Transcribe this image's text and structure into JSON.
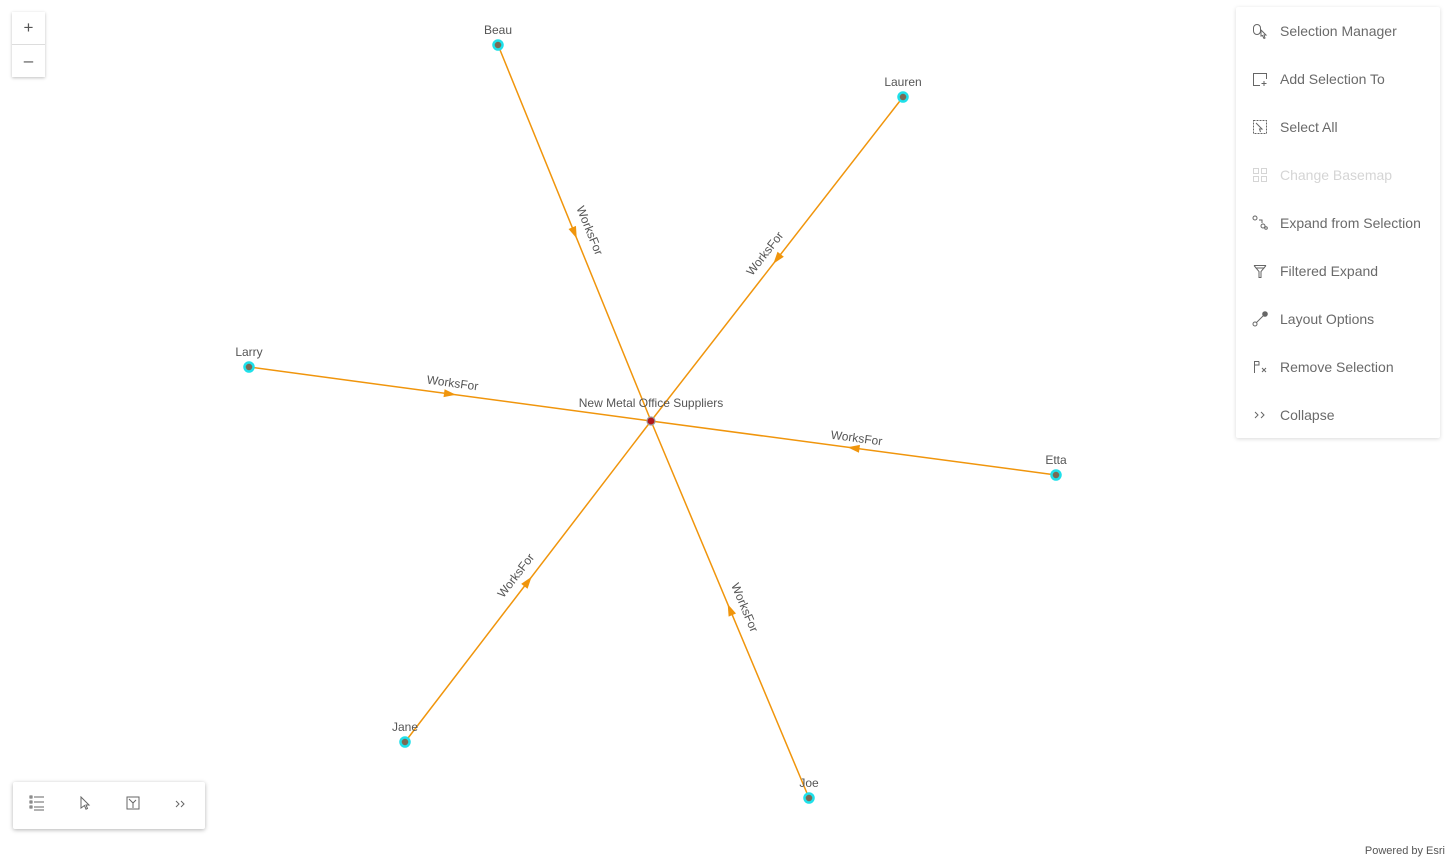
{
  "graph": {
    "center": {
      "label": "New Metal Office Suppliers",
      "color": "#b3161b"
    },
    "nodes": [
      {
        "label": "Beau"
      },
      {
        "label": "Lauren"
      },
      {
        "label": "Larry"
      },
      {
        "label": "Etta"
      },
      {
        "label": "Jane"
      },
      {
        "label": "Joe"
      }
    ],
    "edge_label": "WorksFor",
    "edge_color": "#f0950c",
    "node_ring_color": "#1fe0ea",
    "node_fill_color": "#7a6a55"
  },
  "zoom": {
    "in": "+",
    "out": "–"
  },
  "menu": {
    "items": [
      {
        "label": "Selection Manager",
        "icon": "selection-manager-icon"
      },
      {
        "label": "Add Selection To",
        "icon": "add-selection-icon"
      },
      {
        "label": "Select All",
        "icon": "select-all-icon"
      },
      {
        "label": "Change Basemap",
        "icon": "basemap-icon",
        "disabled": true
      },
      {
        "label": "Expand from Selection",
        "icon": "expand-icon"
      },
      {
        "label": "Filtered Expand",
        "icon": "filter-icon"
      },
      {
        "label": "Layout Options",
        "icon": "layout-icon"
      },
      {
        "label": "Remove Selection",
        "icon": "remove-selection-icon"
      },
      {
        "label": "Collapse",
        "icon": "chevrons-right-icon"
      }
    ]
  },
  "toolbar": {
    "icons": [
      "list-icon",
      "cursor-icon",
      "layout-icon",
      "chevrons-right-icon"
    ]
  },
  "footer": {
    "powered": "Powered by Esri"
  }
}
